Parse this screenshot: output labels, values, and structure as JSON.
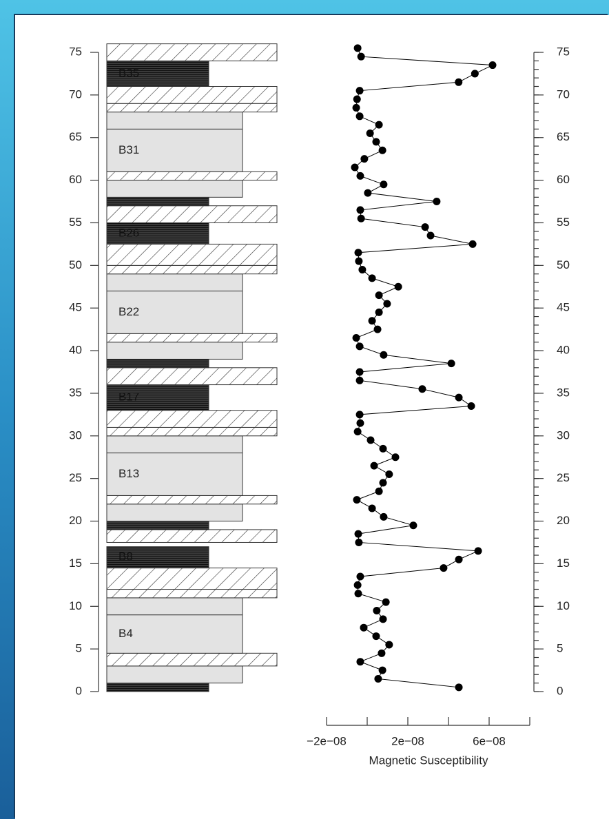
{
  "chart_data": {
    "type": "strat-line",
    "xlabel": "Magnetic Susceptibility",
    "xlim": [
      -2e-08,
      8e-08
    ],
    "xticks": [
      {
        "value": -2e-08,
        "label": "−2e−08"
      },
      {
        "value": 2e-08,
        "label": "2e−08"
      },
      {
        "value": 6e-08,
        "label": "6e−08"
      }
    ],
    "xminor_ticks": [
      0,
      4e-08,
      8e-08
    ],
    "ylim": [
      0,
      75
    ],
    "yticks": [
      0,
      5,
      10,
      15,
      20,
      25,
      30,
      35,
      40,
      45,
      50,
      55,
      60,
      65,
      70,
      75
    ],
    "y2minor_step": 1,
    "color": "#000000",
    "series": [
      {
        "x": [
          -4.7e-09,
          -3e-09,
          6.17e-08,
          5.3e-08,
          4.5e-08,
          -3.7e-09,
          -5e-09,
          -5.4e-09,
          -3.7e-09,
          5.8e-09,
          1.4e-09,
          4.4e-09,
          7.5e-09,
          -1.4e-09,
          -6.1e-09,
          -3.4e-09,
          8.1e-09,
          3e-10,
          3.42e-08,
          -3.4e-09,
          -3e-09,
          2.85e-08,
          3.12e-08,
          5.19e-08,
          -4.4e-09,
          -4.1e-09,
          -2.4e-09,
          2.4e-09,
          1.53e-08,
          5.8e-09,
          9.8e-09,
          5.8e-09,
          2.4e-09,
          5.1e-09,
          -5.4e-09,
          -3.7e-09,
          8.1e-09,
          4.14e-08,
          -3.7e-09,
          -3.7e-09,
          2.71e-08,
          4.51e-08,
          5.12e-08,
          -3.7e-09,
          -3.4e-09,
          -4.7e-09,
          1.7e-09,
          7.8e-09,
          1.39e-08,
          3.4e-09,
          1.08e-08,
          7.8e-09,
          5.8e-09,
          -5.1e-09,
          2.4e-09,
          8.1e-09,
          2.27e-08,
          -4.4e-09,
          -4.1e-09,
          5.46e-08,
          4.51e-08,
          3.76e-08,
          -3.4e-09,
          -4.7e-09,
          -4.4e-09,
          9.2e-09,
          4.7e-09,
          7.8e-09,
          -1.7e-09,
          4.4e-09,
          1.08e-08,
          7.1e-09,
          -3.4e-09,
          7.5e-09,
          5.4e-09,
          4.51e-08
        ],
        "values": [
          75.5,
          74.5,
          73.5,
          72.5,
          71.5,
          70.5,
          69.5,
          68.5,
          67.5,
          66.5,
          65.5,
          64.5,
          63.5,
          62.5,
          61.5,
          60.5,
          59.5,
          58.5,
          57.5,
          56.5,
          55.5,
          54.5,
          53.5,
          52.5,
          51.5,
          50.5,
          49.5,
          48.5,
          47.5,
          46.5,
          45.5,
          44.5,
          43.5,
          42.5,
          41.5,
          40.5,
          39.5,
          38.5,
          37.5,
          36.5,
          35.5,
          34.5,
          33.5,
          32.5,
          31.5,
          30.5,
          29.5,
          28.5,
          27.5,
          26.5,
          25.5,
          24.5,
          23.5,
          22.5,
          21.5,
          20.5,
          19.5,
          18.5,
          17.5,
          16.5,
          15.5,
          14.5,
          13.5,
          12.5,
          11.5,
          10.5,
          9.5,
          8.5,
          7.5,
          6.5,
          5.5,
          4.5,
          3.5,
          2.5,
          1.5,
          0.5
        ]
      }
    ],
    "layers": [
      {
        "from": 0,
        "to": 1,
        "fill": "dark"
      },
      {
        "from": 1,
        "to": 3,
        "fill": "light"
      },
      {
        "from": 3,
        "to": 4.5,
        "fill": "hatch"
      },
      {
        "from": 4.5,
        "to": 9,
        "fill": "light",
        "label": "B4"
      },
      {
        "from": 9,
        "to": 11,
        "fill": "light"
      },
      {
        "from": 11,
        "to": 12,
        "fill": "hatch"
      },
      {
        "from": 12,
        "to": 14.5,
        "fill": "hatch"
      },
      {
        "from": 14.5,
        "to": 17,
        "fill": "dark",
        "label": "B8"
      },
      {
        "from": 17.5,
        "to": 19,
        "fill": "hatch"
      },
      {
        "from": 19,
        "to": 20,
        "fill": "dark"
      },
      {
        "from": 20,
        "to": 22,
        "fill": "light"
      },
      {
        "from": 22,
        "to": 23,
        "fill": "hatch"
      },
      {
        "from": 23,
        "to": 28,
        "fill": "light",
        "label": "B13"
      },
      {
        "from": 28,
        "to": 30,
        "fill": "light"
      },
      {
        "from": 30,
        "to": 31,
        "fill": "hatch"
      },
      {
        "from": 31,
        "to": 33,
        "fill": "hatch"
      },
      {
        "from": 33,
        "to": 36,
        "fill": "dark",
        "label": "B17"
      },
      {
        "from": 36,
        "to": 38,
        "fill": "hatch"
      },
      {
        "from": 38,
        "to": 39,
        "fill": "dark"
      },
      {
        "from": 39,
        "to": 41,
        "fill": "light"
      },
      {
        "from": 41,
        "to": 42,
        "fill": "hatch"
      },
      {
        "from": 42,
        "to": 47,
        "fill": "light",
        "label": "B22"
      },
      {
        "from": 47,
        "to": 49,
        "fill": "light"
      },
      {
        "from": 49,
        "to": 50,
        "fill": "hatch"
      },
      {
        "from": 50,
        "to": 52.5,
        "fill": "hatch"
      },
      {
        "from": 52.5,
        "to": 55,
        "fill": "dark",
        "label": "B26"
      },
      {
        "from": 55,
        "to": 57,
        "fill": "hatch"
      },
      {
        "from": 57,
        "to": 58,
        "fill": "dark"
      },
      {
        "from": 58,
        "to": 60,
        "fill": "light"
      },
      {
        "from": 60,
        "to": 61,
        "fill": "hatch"
      },
      {
        "from": 61,
        "to": 66,
        "fill": "light",
        "label": "B31"
      },
      {
        "from": 66,
        "to": 68,
        "fill": "light"
      },
      {
        "from": 68,
        "to": 69,
        "fill": "hatch"
      },
      {
        "from": 69,
        "to": 71,
        "fill": "hatch"
      },
      {
        "from": 71,
        "to": 74,
        "fill": "dark",
        "label": "B35"
      },
      {
        "from": 74,
        "to": 76,
        "fill": "hatch"
      }
    ]
  }
}
